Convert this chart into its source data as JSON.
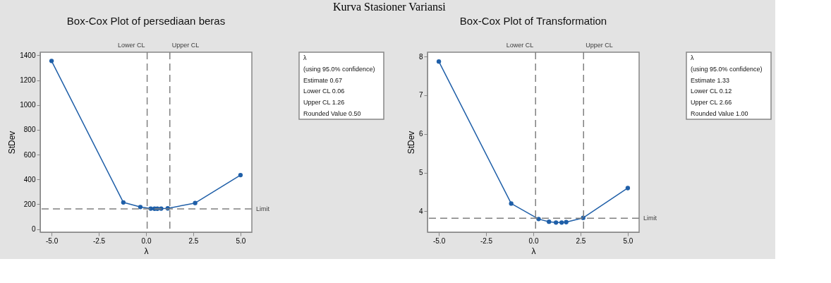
{
  "chart_data": [
    {
      "type": "line",
      "title": "Box-Cox Plot of persediaan beras",
      "xlabel": "λ",
      "ylabel": "StDev",
      "color": "#1f5fa8",
      "marker": "circle",
      "line_style": "solid",
      "grid": false,
      "x": [
        -5,
        -1.2,
        -0.3,
        0.25,
        0.45,
        0.6,
        0.8,
        1.15,
        2.6,
        5
      ],
      "values": [
        1355,
        215,
        178,
        165,
        164,
        164,
        165,
        167,
        210,
        435
      ],
      "xlim": [
        -5.6,
        5.6
      ],
      "ylim": [
        -25,
        1425
      ],
      "xticks": [
        {
          "value": -5,
          "label": "-5.0"
        },
        {
          "value": -2.5,
          "label": "-2.5"
        },
        {
          "value": 0,
          "label": "0.0"
        },
        {
          "value": 2.5,
          "label": "2.5"
        },
        {
          "value": 5,
          "label": "5.0"
        }
      ],
      "yticks": [
        0,
        200,
        400,
        600,
        800,
        1000,
        1200,
        1400
      ],
      "ref_lines": [
        {
          "axis": "x",
          "value": 0.06,
          "label": "Lower CL",
          "color": "#808080",
          "line_style": "dashed"
        },
        {
          "axis": "x",
          "value": 1.26,
          "label": "Upper CL",
          "color": "#808080",
          "line_style": "dashed"
        },
        {
          "axis": "y",
          "value": 163,
          "label": "Limit",
          "color": "#808080",
          "line_style": "dashed"
        }
      ],
      "annotations": [
        "Kurva Stasioner Variansi",
        "λ",
        "(using 95.0% confidence)",
        "Estimate 0.67",
        "Lower CL 0.06",
        "Upper CL 1.26",
        "Rounded Value 0.50"
      ]
    },
    {
      "type": "line",
      "title": "Box-Cox Plot of Transformation",
      "xlabel": "λ",
      "ylabel": "StDev",
      "color": "#1f5fa8",
      "marker": "circle",
      "line_style": "solid",
      "grid": false,
      "x": [
        -5,
        -1.17,
        0.28,
        0.83,
        1.2,
        1.5,
        1.74,
        2.64,
        5
      ],
      "values": [
        7.87,
        4.2,
        3.8,
        3.73,
        3.71,
        3.71,
        3.72,
        3.83,
        4.6
      ],
      "xlim": [
        -5.6,
        5.6
      ],
      "ylim": [
        3.46,
        8.11
      ],
      "xticks": [
        {
          "value": -5,
          "label": "-5.0"
        },
        {
          "value": -2.5,
          "label": "-2.5"
        },
        {
          "value": 0,
          "label": "0.0"
        },
        {
          "value": 2.5,
          "label": "2.5"
        },
        {
          "value": 5,
          "label": "5.0"
        }
      ],
      "yticks": [
        4,
        5,
        6,
        7,
        8
      ],
      "ref_lines": [
        {
          "axis": "x",
          "value": 0.12,
          "label": "Lower CL",
          "color": "#808080",
          "line_style": "dashed"
        },
        {
          "axis": "x",
          "value": 2.66,
          "label": "Upper CL",
          "color": "#808080",
          "line_style": "dashed"
        },
        {
          "axis": "y",
          "value": 3.82,
          "label": "Limit",
          "color": "#808080",
          "line_style": "dashed"
        }
      ],
      "annotations": [
        "λ",
        "(using 95.0% confidence)",
        "Estimate 1.33",
        "Lower CL 0.12",
        "Upper CL 2.66",
        "Rounded Value 1.00"
      ]
    }
  ]
}
